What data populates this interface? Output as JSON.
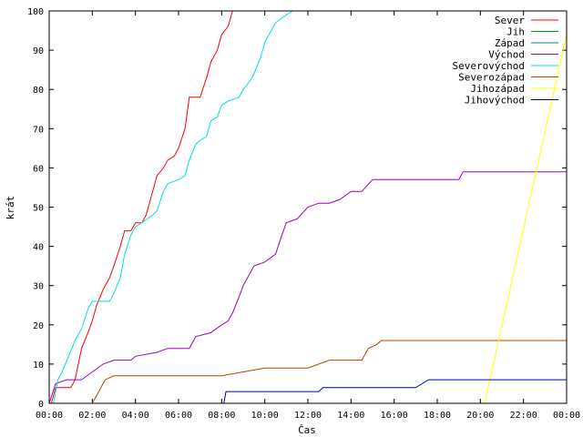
{
  "chart_data": {
    "type": "line",
    "xlabel": "Čas",
    "ylabel": "krát",
    "xlim": [
      0,
      24
    ],
    "ylim": [
      0,
      100
    ],
    "x_ticks": [
      "00:00",
      "02:00",
      "04:00",
      "06:00",
      "08:00",
      "10:00",
      "12:00",
      "14:00",
      "16:00",
      "18:00",
      "20:00",
      "22:00",
      "00:00"
    ],
    "y_ticks": [
      "0",
      "10",
      "20",
      "30",
      "40",
      "50",
      "60",
      "70",
      "80",
      "90",
      "100"
    ],
    "grid": false,
    "legend_position": "top-right",
    "series": [
      {
        "name": "Sever",
        "color": "#ff0000",
        "points": [
          [
            0.1,
            0
          ],
          [
            0.3,
            4
          ],
          [
            0.5,
            4
          ],
          [
            0.7,
            4
          ],
          [
            1.0,
            4
          ],
          [
            1.2,
            6
          ],
          [
            1.5,
            14
          ],
          [
            1.8,
            18
          ],
          [
            2.0,
            21
          ],
          [
            2.2,
            25
          ],
          [
            2.5,
            29
          ],
          [
            2.8,
            32
          ],
          [
            3.0,
            35
          ],
          [
            3.3,
            40
          ],
          [
            3.5,
            44
          ],
          [
            3.8,
            44
          ],
          [
            4.0,
            46
          ],
          [
            4.3,
            46
          ],
          [
            4.5,
            48
          ],
          [
            4.8,
            54
          ],
          [
            5.0,
            58
          ],
          [
            5.3,
            60
          ],
          [
            5.5,
            62
          ],
          [
            5.8,
            63
          ],
          [
            6.0,
            65
          ],
          [
            6.3,
            70
          ],
          [
            6.5,
            78
          ],
          [
            6.8,
            78
          ],
          [
            7.0,
            78
          ],
          [
            7.3,
            83
          ],
          [
            7.5,
            87
          ],
          [
            7.8,
            90
          ],
          [
            8.0,
            94
          ],
          [
            8.3,
            96
          ],
          [
            8.5,
            100
          ]
        ]
      },
      {
        "name": "Jih",
        "color": "#00a000",
        "points": []
      },
      {
        "name": "Západ",
        "color": "#0080a0",
        "points": []
      },
      {
        "name": "Východ",
        "color": "#a000c0",
        "points": [
          [
            0.0,
            0
          ],
          [
            0.3,
            5
          ],
          [
            0.8,
            6
          ],
          [
            1.5,
            6
          ],
          [
            2.5,
            10
          ],
          [
            3.0,
            11
          ],
          [
            3.8,
            11
          ],
          [
            4.0,
            12
          ],
          [
            5.0,
            13
          ],
          [
            5.5,
            14
          ],
          [
            6.5,
            14
          ],
          [
            6.8,
            17
          ],
          [
            7.5,
            18
          ],
          [
            8.0,
            20
          ],
          [
            8.3,
            21
          ],
          [
            8.5,
            23
          ],
          [
            8.8,
            27
          ],
          [
            9.0,
            30
          ],
          [
            9.3,
            33
          ],
          [
            9.5,
            35
          ],
          [
            10.0,
            36
          ],
          [
            10.5,
            38
          ],
          [
            10.8,
            43
          ],
          [
            11.0,
            46
          ],
          [
            11.5,
            47
          ],
          [
            12.0,
            50
          ],
          [
            12.5,
            51
          ],
          [
            13.0,
            51
          ],
          [
            13.5,
            52
          ],
          [
            14.0,
            54
          ],
          [
            14.5,
            54
          ],
          [
            15.0,
            57
          ],
          [
            17.0,
            57
          ],
          [
            19.0,
            57
          ],
          [
            19.2,
            59
          ],
          [
            24.0,
            59
          ]
        ]
      },
      {
        "name": "Severovýchod",
        "color": "#00e0e0",
        "points": [
          [
            0.2,
            0
          ],
          [
            0.4,
            6
          ],
          [
            0.6,
            8
          ],
          [
            0.9,
            12
          ],
          [
            1.2,
            16
          ],
          [
            1.5,
            19
          ],
          [
            1.8,
            24
          ],
          [
            2.0,
            26
          ],
          [
            2.5,
            26
          ],
          [
            2.8,
            26
          ],
          [
            3.0,
            28
          ],
          [
            3.3,
            32
          ],
          [
            3.5,
            38
          ],
          [
            3.8,
            43
          ],
          [
            4.0,
            45
          ],
          [
            4.3,
            46
          ],
          [
            4.8,
            48
          ],
          [
            5.0,
            49
          ],
          [
            5.3,
            54
          ],
          [
            5.5,
            56
          ],
          [
            6.0,
            57
          ],
          [
            6.3,
            58
          ],
          [
            6.5,
            62
          ],
          [
            6.8,
            66
          ],
          [
            7.0,
            67
          ],
          [
            7.3,
            68
          ],
          [
            7.5,
            72
          ],
          [
            7.8,
            73
          ],
          [
            8.0,
            76
          ],
          [
            8.3,
            77
          ],
          [
            8.8,
            78
          ],
          [
            9.0,
            80
          ],
          [
            9.3,
            82
          ],
          [
            9.5,
            84
          ],
          [
            9.8,
            88
          ],
          [
            10.0,
            92
          ],
          [
            10.3,
            95
          ],
          [
            10.5,
            97
          ],
          [
            11.0,
            99
          ],
          [
            11.3,
            100
          ]
        ]
      },
      {
        "name": "Severozápad",
        "color": "#c04000",
        "points": [
          [
            2.0,
            0
          ],
          [
            2.2,
            2
          ],
          [
            2.6,
            6
          ],
          [
            3.0,
            7
          ],
          [
            5.0,
            7
          ],
          [
            8.0,
            7
          ],
          [
            9.0,
            8
          ],
          [
            10.0,
            9
          ],
          [
            12.0,
            9
          ],
          [
            13.0,
            11
          ],
          [
            14.5,
            11
          ],
          [
            14.8,
            14
          ],
          [
            15.2,
            15
          ],
          [
            15.4,
            16
          ],
          [
            24.0,
            16
          ]
        ]
      },
      {
        "name": "Jihozápad",
        "color": "#ffff00",
        "points": [
          [
            20.2,
            0
          ],
          [
            24.0,
            94
          ]
        ]
      },
      {
        "name": "Jihovýchod",
        "color": "#0000c0",
        "points": [
          [
            8.1,
            0
          ],
          [
            8.2,
            3
          ],
          [
            12.5,
            3
          ],
          [
            12.7,
            4
          ],
          [
            17.0,
            4
          ],
          [
            17.6,
            6
          ],
          [
            24.0,
            6
          ]
        ]
      }
    ]
  }
}
